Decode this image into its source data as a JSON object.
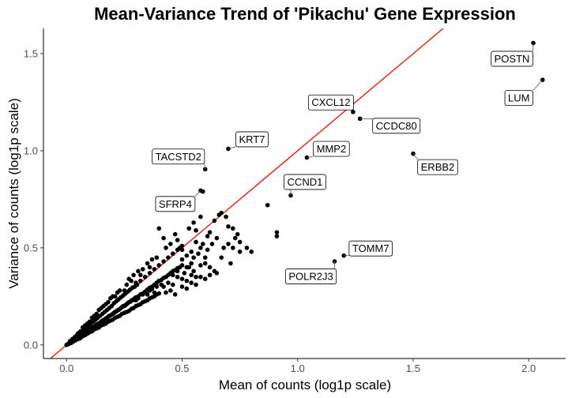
{
  "chart_data": {
    "type": "scatter",
    "title": "Mean-Variance Trend of 'Pikachu' Gene Expression",
    "xlabel": "Mean of counts (log1p scale)",
    "ylabel": "Variance of counts (log1p scale)",
    "xlim": [
      -0.1,
      2.16
    ],
    "ylim": [
      -0.07,
      1.63
    ],
    "x_ticks": [
      0.0,
      0.5,
      1.0,
      1.5,
      2.0
    ],
    "x_tick_labels": [
      "0.0",
      "0.5",
      "1.0",
      "1.5",
      "2.0"
    ],
    "y_ticks": [
      0.0,
      0.5,
      1.0,
      1.5
    ],
    "y_tick_labels": [
      "0.0",
      "0.5",
      "1.0",
      "1.5"
    ],
    "grid": false,
    "reference_line": {
      "slope": 1,
      "intercept": 0,
      "color": "#ff0000"
    },
    "point_color": "#000000",
    "labeled_points": [
      {
        "gene": "POSTN",
        "x": 2.02,
        "y": 1.555
      },
      {
        "gene": "LUM",
        "x": 2.06,
        "y": 1.365
      },
      {
        "gene": "CXCL12",
        "x": 1.24,
        "y": 1.2
      },
      {
        "gene": "CCDC80",
        "x": 1.27,
        "y": 1.165
      },
      {
        "gene": "KRT7",
        "x": 0.7,
        "y": 1.01
      },
      {
        "gene": "ERBB2",
        "x": 1.5,
        "y": 0.985
      },
      {
        "gene": "MMP2",
        "x": 1.04,
        "y": 0.965
      },
      {
        "gene": "TACSTD2",
        "x": 0.6,
        "y": 0.905
      },
      {
        "gene": "CCND1",
        "x": 0.97,
        "y": 0.77
      },
      {
        "gene": "SFRP4",
        "x": 0.58,
        "y": 0.795
      },
      {
        "gene": "TOMM7",
        "x": 1.2,
        "y": 0.46
      },
      {
        "gene": "POLR2J3",
        "x": 1.16,
        "y": 0.43
      }
    ],
    "points": [
      [
        0.0,
        0.0
      ],
      [
        0.005,
        0.004
      ],
      [
        0.01,
        0.008
      ],
      [
        0.015,
        0.012
      ],
      [
        0.02,
        0.015
      ],
      [
        0.025,
        0.02
      ],
      [
        0.03,
        0.022
      ],
      [
        0.035,
        0.028
      ],
      [
        0.04,
        0.032
      ],
      [
        0.045,
        0.035
      ],
      [
        0.05,
        0.04
      ],
      [
        0.055,
        0.045
      ],
      [
        0.06,
        0.048
      ],
      [
        0.065,
        0.052
      ],
      [
        0.07,
        0.056
      ],
      [
        0.075,
        0.06
      ],
      [
        0.08,
        0.063
      ],
      [
        0.085,
        0.068
      ],
      [
        0.09,
        0.072
      ],
      [
        0.095,
        0.075
      ],
      [
        0.1,
        0.08
      ],
      [
        0.105,
        0.085
      ],
      [
        0.11,
        0.088
      ],
      [
        0.115,
        0.092
      ],
      [
        0.12,
        0.095
      ],
      [
        0.125,
        0.1
      ],
      [
        0.13,
        0.105
      ],
      [
        0.135,
        0.108
      ],
      [
        0.14,
        0.112
      ],
      [
        0.145,
        0.115
      ],
      [
        0.15,
        0.12
      ],
      [
        0.155,
        0.125
      ],
      [
        0.16,
        0.128
      ],
      [
        0.165,
        0.132
      ],
      [
        0.17,
        0.136
      ],
      [
        0.175,
        0.14
      ],
      [
        0.18,
        0.145
      ],
      [
        0.185,
        0.15
      ],
      [
        0.19,
        0.152
      ],
      [
        0.195,
        0.156
      ],
      [
        0.2,
        0.16
      ],
      [
        0.205,
        0.165
      ],
      [
        0.21,
        0.17
      ],
      [
        0.215,
        0.172
      ],
      [
        0.22,
        0.178
      ],
      [
        0.225,
        0.18
      ],
      [
        0.23,
        0.185
      ],
      [
        0.235,
        0.19
      ],
      [
        0.24,
        0.195
      ],
      [
        0.245,
        0.2
      ],
      [
        0.25,
        0.2
      ],
      [
        0.255,
        0.205
      ],
      [
        0.26,
        0.21
      ],
      [
        0.265,
        0.215
      ],
      [
        0.27,
        0.22
      ],
      [
        0.275,
        0.222
      ],
      [
        0.28,
        0.228
      ],
      [
        0.285,
        0.23
      ],
      [
        0.29,
        0.235
      ],
      [
        0.295,
        0.24
      ],
      [
        0.3,
        0.245
      ],
      [
        0.31,
        0.25
      ],
      [
        0.32,
        0.26
      ],
      [
        0.33,
        0.265
      ],
      [
        0.34,
        0.275
      ],
      [
        0.35,
        0.285
      ],
      [
        0.36,
        0.295
      ],
      [
        0.37,
        0.3
      ],
      [
        0.38,
        0.31
      ],
      [
        0.39,
        0.32
      ],
      [
        0.4,
        0.33
      ],
      [
        0.41,
        0.335
      ],
      [
        0.42,
        0.345
      ],
      [
        0.43,
        0.35
      ],
      [
        0.44,
        0.36
      ],
      [
        0.45,
        0.37
      ],
      [
        0.46,
        0.38
      ],
      [
        0.47,
        0.385
      ],
      [
        0.48,
        0.395
      ],
      [
        0.49,
        0.4
      ],
      [
        0.01,
        0.005
      ],
      [
        0.02,
        0.01
      ],
      [
        0.03,
        0.018
      ],
      [
        0.04,
        0.025
      ],
      [
        0.05,
        0.03
      ],
      [
        0.06,
        0.035
      ],
      [
        0.07,
        0.045
      ],
      [
        0.08,
        0.05
      ],
      [
        0.09,
        0.058
      ],
      [
        0.1,
        0.065
      ],
      [
        0.11,
        0.07
      ],
      [
        0.12,
        0.08
      ],
      [
        0.13,
        0.085
      ],
      [
        0.14,
        0.09
      ],
      [
        0.15,
        0.1
      ],
      [
        0.16,
        0.105
      ],
      [
        0.17,
        0.11
      ],
      [
        0.18,
        0.12
      ],
      [
        0.19,
        0.125
      ],
      [
        0.2,
        0.13
      ],
      [
        0.21,
        0.14
      ],
      [
        0.22,
        0.145
      ],
      [
        0.23,
        0.15
      ],
      [
        0.24,
        0.16
      ],
      [
        0.25,
        0.165
      ],
      [
        0.26,
        0.17
      ],
      [
        0.27,
        0.175
      ],
      [
        0.28,
        0.185
      ],
      [
        0.29,
        0.19
      ],
      [
        0.3,
        0.2
      ],
      [
        0.31,
        0.205
      ],
      [
        0.32,
        0.21
      ],
      [
        0.33,
        0.22
      ],
      [
        0.34,
        0.225
      ],
      [
        0.35,
        0.23
      ],
      [
        0.36,
        0.24
      ],
      [
        0.37,
        0.245
      ],
      [
        0.38,
        0.25
      ],
      [
        0.39,
        0.26
      ],
      [
        0.4,
        0.265
      ],
      [
        0.015,
        0.02
      ],
      [
        0.025,
        0.03
      ],
      [
        0.035,
        0.04
      ],
      [
        0.045,
        0.05
      ],
      [
        0.055,
        0.06
      ],
      [
        0.065,
        0.07
      ],
      [
        0.075,
        0.08
      ],
      [
        0.085,
        0.09
      ],
      [
        0.095,
        0.1
      ],
      [
        0.105,
        0.11
      ],
      [
        0.115,
        0.12
      ],
      [
        0.125,
        0.13
      ],
      [
        0.135,
        0.14
      ],
      [
        0.145,
        0.15
      ],
      [
        0.155,
        0.16
      ],
      [
        0.165,
        0.17
      ],
      [
        0.175,
        0.18
      ],
      [
        0.185,
        0.19
      ],
      [
        0.195,
        0.2
      ],
      [
        0.205,
        0.215
      ],
      [
        0.215,
        0.225
      ],
      [
        0.225,
        0.235
      ],
      [
        0.235,
        0.245
      ],
      [
        0.245,
        0.255
      ],
      [
        0.255,
        0.265
      ],
      [
        0.265,
        0.275
      ],
      [
        0.275,
        0.285
      ],
      [
        0.285,
        0.295
      ],
      [
        0.295,
        0.3
      ],
      [
        0.305,
        0.31
      ],
      [
        0.32,
        0.33
      ],
      [
        0.34,
        0.35
      ],
      [
        0.36,
        0.37
      ],
      [
        0.38,
        0.39
      ],
      [
        0.4,
        0.41
      ],
      [
        0.42,
        0.43
      ],
      [
        0.44,
        0.45
      ],
      [
        0.46,
        0.47
      ],
      [
        0.48,
        0.49
      ],
      [
        0.5,
        0.51
      ],
      [
        0.21,
        0.25
      ],
      [
        0.22,
        0.27
      ],
      [
        0.25,
        0.28
      ],
      [
        0.28,
        0.33
      ],
      [
        0.29,
        0.36
      ],
      [
        0.3,
        0.32
      ],
      [
        0.32,
        0.36
      ],
      [
        0.33,
        0.39
      ],
      [
        0.35,
        0.42
      ],
      [
        0.36,
        0.4
      ],
      [
        0.37,
        0.44
      ],
      [
        0.39,
        0.45
      ],
      [
        0.4,
        0.6
      ],
      [
        0.42,
        0.55
      ],
      [
        0.43,
        0.5
      ],
      [
        0.45,
        0.52
      ],
      [
        0.47,
        0.57
      ],
      [
        0.48,
        0.54
      ],
      [
        0.49,
        0.5
      ],
      [
        0.5,
        0.49
      ],
      [
        0.42,
        0.3
      ],
      [
        0.44,
        0.32
      ],
      [
        0.46,
        0.31
      ],
      [
        0.48,
        0.35
      ],
      [
        0.5,
        0.34
      ],
      [
        0.51,
        0.37
      ],
      [
        0.52,
        0.33
      ],
      [
        0.53,
        0.4
      ],
      [
        0.54,
        0.42
      ],
      [
        0.55,
        0.38
      ],
      [
        0.43,
        0.27
      ],
      [
        0.45,
        0.28
      ],
      [
        0.47,
        0.26
      ],
      [
        0.5,
        0.3
      ],
      [
        0.52,
        0.29
      ],
      [
        0.54,
        0.32
      ],
      [
        0.56,
        0.31
      ],
      [
        0.58,
        0.35
      ],
      [
        0.6,
        0.34
      ],
      [
        0.62,
        0.36
      ],
      [
        0.5,
        0.44
      ],
      [
        0.52,
        0.46
      ],
      [
        0.54,
        0.48
      ],
      [
        0.55,
        0.45
      ],
      [
        0.56,
        0.53
      ],
      [
        0.57,
        0.47
      ],
      [
        0.58,
        0.5
      ],
      [
        0.59,
        0.52
      ],
      [
        0.6,
        0.45
      ],
      [
        0.61,
        0.49
      ],
      [
        0.53,
        0.6
      ],
      [
        0.55,
        0.63
      ],
      [
        0.56,
        0.59
      ],
      [
        0.58,
        0.66
      ],
      [
        0.59,
        0.79
      ],
      [
        0.61,
        0.56
      ],
      [
        0.62,
        0.58
      ],
      [
        0.63,
        0.52
      ],
      [
        0.64,
        0.64
      ],
      [
        0.65,
        0.55
      ],
      [
        0.66,
        0.67
      ],
      [
        0.67,
        0.68
      ],
      [
        0.68,
        0.5
      ],
      [
        0.69,
        0.66
      ],
      [
        0.7,
        0.61
      ],
      [
        0.71,
        0.42
      ],
      [
        0.72,
        0.6
      ],
      [
        0.73,
        0.55
      ],
      [
        0.74,
        0.57
      ],
      [
        0.75,
        0.48
      ],
      [
        0.62,
        0.4
      ],
      [
        0.64,
        0.38
      ],
      [
        0.65,
        0.37
      ],
      [
        0.67,
        0.45
      ],
      [
        0.7,
        0.52
      ],
      [
        0.72,
        0.5
      ],
      [
        0.75,
        0.53
      ],
      [
        0.78,
        0.5
      ],
      [
        0.8,
        0.48
      ],
      [
        0.87,
        0.72
      ],
      [
        0.91,
        0.56
      ],
      [
        0.91,
        0.58
      ],
      [
        0.6,
        0.42
      ],
      [
        0.58,
        0.41
      ],
      [
        0.56,
        0.35
      ],
      [
        0.54,
        0.36
      ],
      [
        0.52,
        0.4
      ],
      [
        0.5,
        0.41
      ],
      [
        0.48,
        0.38
      ],
      [
        0.46,
        0.36
      ],
      [
        0.3,
        0.23
      ],
      [
        0.31,
        0.24
      ],
      [
        0.33,
        0.26
      ],
      [
        0.34,
        0.27
      ],
      [
        0.35,
        0.26
      ],
      [
        0.36,
        0.28
      ],
      [
        0.37,
        0.29
      ],
      [
        0.38,
        0.27
      ],
      [
        0.39,
        0.3
      ],
      [
        0.41,
        0.31
      ],
      [
        0.05,
        0.06
      ],
      [
        0.06,
        0.07
      ],
      [
        0.07,
        0.09
      ],
      [
        0.08,
        0.1
      ],
      [
        0.09,
        0.11
      ],
      [
        0.1,
        0.12
      ],
      [
        0.11,
        0.14
      ],
      [
        0.12,
        0.15
      ],
      [
        0.13,
        0.16
      ],
      [
        0.14,
        0.18
      ],
      [
        0.15,
        0.19
      ],
      [
        0.16,
        0.2
      ],
      [
        0.17,
        0.21
      ],
      [
        0.18,
        0.22
      ],
      [
        0.19,
        0.24
      ],
      [
        0.2,
        0.25
      ],
      [
        0.23,
        0.28
      ],
      [
        0.26,
        0.31
      ],
      [
        0.27,
        0.34
      ],
      [
        0.31,
        0.38
      ]
    ]
  }
}
